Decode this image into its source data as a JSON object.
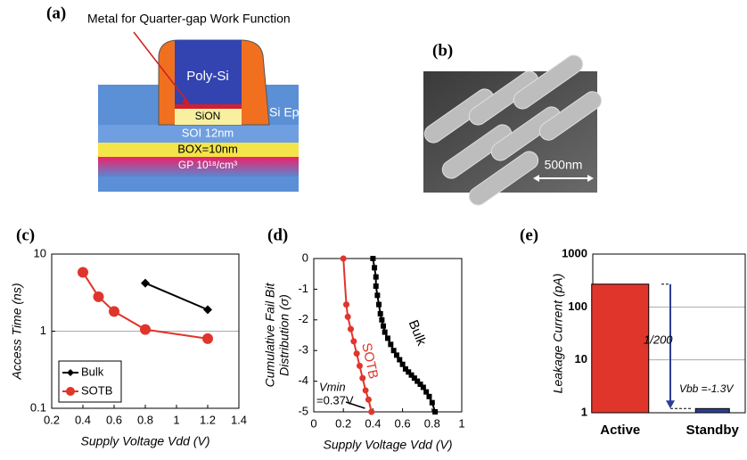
{
  "panel_a": {
    "label": "(a)",
    "annotation": "Metal for Quarter-gap Work Function",
    "layers": [
      "Poly-Si",
      "SiON",
      "Si Epi",
      "SOI 12nm",
      "BOX=10nm",
      "GP  10¹⁸/cm³"
    ]
  },
  "panel_b": {
    "label": "(b)",
    "scale_bar": "500nm"
  },
  "chart_data": [
    {
      "type": "line",
      "panel": "(c)",
      "xlabel": "Supply Voltage Vdd (V)",
      "ylabel": "Access Time (ns)",
      "xlim": [
        0.2,
        1.4
      ],
      "xticks": [
        0.2,
        0.4,
        0.6,
        0.8,
        1,
        1.2,
        1.4
      ],
      "ylim": [
        0.1,
        10
      ],
      "yticks": [
        0.1,
        1,
        10
      ],
      "ylog": true,
      "grid": true,
      "legend": "lower left",
      "series": [
        {
          "name": "Bulk",
          "color": "#000000",
          "marker": "diamond",
          "x": [
            0.8,
            1.2
          ],
          "values": [
            4.2,
            1.9
          ]
        },
        {
          "name": "SOTB",
          "color": "#e0352b",
          "marker": "circle",
          "x": [
            0.4,
            0.5,
            0.6,
            0.8,
            1.2
          ],
          "values": [
            5.8,
            2.8,
            1.8,
            1.05,
            0.8
          ]
        }
      ]
    },
    {
      "type": "line",
      "panel": "(d)",
      "xlabel": "Supply Voltage Vdd (V)",
      "ylabel": [
        "Cumulative Fail Bit",
        "Distribution (σ)"
      ],
      "xlim": [
        0,
        1
      ],
      "xticks": [
        0,
        0.2,
        0.4,
        0.6,
        0.8,
        1
      ],
      "ylim": [
        -5,
        0
      ],
      "yticks": [
        0,
        -1,
        -2,
        -3,
        -4,
        -5
      ],
      "ylog": false,
      "grid": false,
      "annotations": [
        "Vmin",
        "=0.37V"
      ],
      "series": [
        {
          "name": "Bulk",
          "color": "#000000",
          "marker": "square",
          "x": [
            0.4,
            0.41,
            0.42,
            0.42,
            0.43,
            0.44,
            0.45,
            0.46,
            0.47,
            0.48,
            0.5,
            0.52,
            0.54,
            0.56,
            0.58,
            0.6,
            0.62,
            0.64,
            0.66,
            0.68,
            0.7,
            0.72,
            0.74,
            0.76,
            0.78,
            0.8,
            0.82
          ],
          "values": [
            0,
            -0.3,
            -0.6,
            -0.9,
            -1.2,
            -1.5,
            -1.8,
            -2.0,
            -2.2,
            -2.4,
            -2.6,
            -2.8,
            -3.0,
            -3.15,
            -3.3,
            -3.45,
            -3.6,
            -3.7,
            -3.8,
            -3.9,
            -4.0,
            -4.1,
            -4.2,
            -4.35,
            -4.5,
            -4.7,
            -5.0
          ]
        },
        {
          "name": "SOTB",
          "color": "#e0352b",
          "marker": "circle",
          "x": [
            0.2,
            0.22,
            0.23,
            0.25,
            0.27,
            0.29,
            0.31,
            0.33,
            0.35,
            0.37,
            0.39
          ],
          "values": [
            0,
            -1.5,
            -1.9,
            -2.3,
            -2.7,
            -3.1,
            -3.5,
            -3.9,
            -4.3,
            -4.6,
            -5.0
          ]
        }
      ]
    },
    {
      "type": "bar",
      "panel": "(e)",
      "ylabel": "Leakage Current (pA)",
      "categories": [
        "Active",
        "Standby"
      ],
      "values": [
        270,
        1.2
      ],
      "colors": [
        "#e0352b",
        "#2b3f93"
      ],
      "ylim": [
        1,
        1000
      ],
      "yticks": [
        1,
        10,
        100,
        1000
      ],
      "ylog": true,
      "grid": true,
      "annotations": [
        "1/200",
        "Vbb =-1.3V"
      ]
    }
  ]
}
